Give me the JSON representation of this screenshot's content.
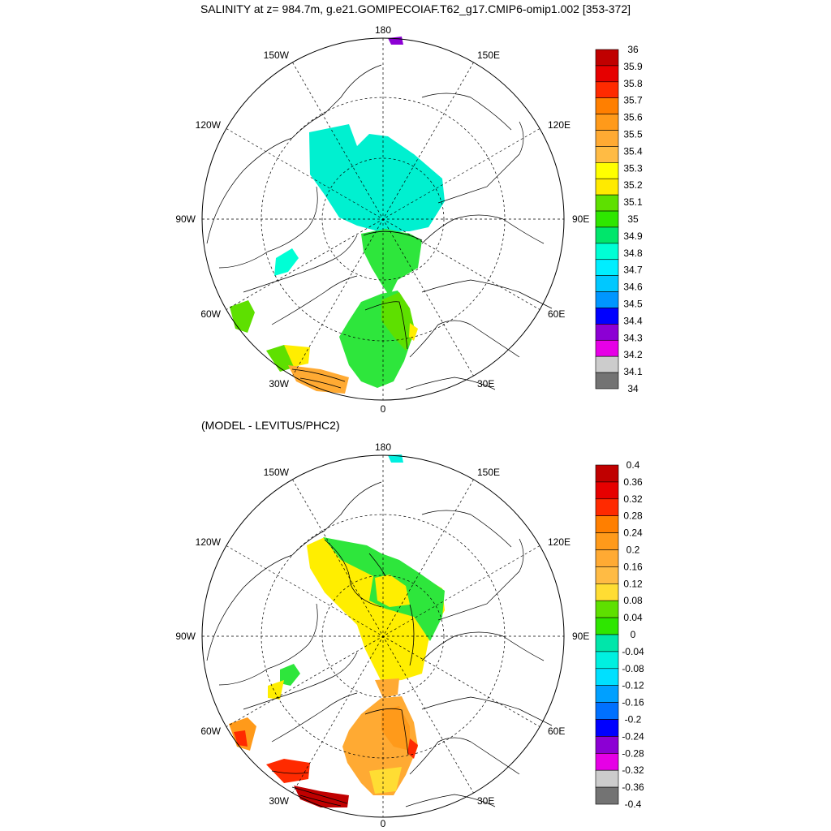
{
  "title": "SALINITY at z= 984.7m, g.e21.GOMIPECOIAF.T62_g17.CMIP6-omip1.002 [353-372]",
  "subtitle": "(MODEL - LEVITUS/PHC2)",
  "longitude_labels": {
    "top": "180",
    "bottom": "0",
    "w150": "150W",
    "e150": "150E",
    "w120": "120W",
    "e120": "120E",
    "w90": "90W",
    "e90": "90E",
    "w60": "60W",
    "e60": "60E",
    "w30": "30W",
    "e30": "30E"
  },
  "colorbar_top": {
    "labels": [
      "36",
      "35.9",
      "35.8",
      "35.7",
      "35.6",
      "35.5",
      "35.4",
      "35.3",
      "35.2",
      "35.1",
      "35",
      "34.9",
      "34.8",
      "34.7",
      "34.6",
      "34.5",
      "34.4",
      "34.3",
      "34.2",
      "34.1",
      "34"
    ],
    "colors": [
      "#c00000",
      "#e60000",
      "#ff2a00",
      "#ff7f00",
      "#ff9a1a",
      "#ffaa33",
      "#ffbb44",
      "#ffff00",
      "#ffea00",
      "#5ee000",
      "#2ee600",
      "#00e66b",
      "#00ffd5",
      "#00eeff",
      "#00c8ff",
      "#0096ff",
      "#0000ff",
      "#8c00d4",
      "#e600e6",
      "#cccccc",
      "#737373"
    ]
  },
  "colorbar_bottom": {
    "labels": [
      "0.4",
      "0.36",
      "0.32",
      "0.28",
      "0.24",
      "0.2",
      "0.16",
      "0.12",
      "0.08",
      "0.04",
      "0",
      "-0.04",
      "-0.08",
      "-0.12",
      "-0.16",
      "-0.2",
      "-0.24",
      "-0.28",
      "-0.32",
      "-0.36",
      "-0.4"
    ],
    "colors": [
      "#c00000",
      "#e60000",
      "#ff2a00",
      "#ff7f00",
      "#ff9a1a",
      "#ffaa33",
      "#ffbb44",
      "#ffdd33",
      "#5ee000",
      "#2ee600",
      "#00e6aa",
      "#00f0e0",
      "#00e0ff",
      "#00a0ff",
      "#0070ff",
      "#0000ff",
      "#8c00d4",
      "#e600e6",
      "#cccccc",
      "#737373"
    ]
  }
}
